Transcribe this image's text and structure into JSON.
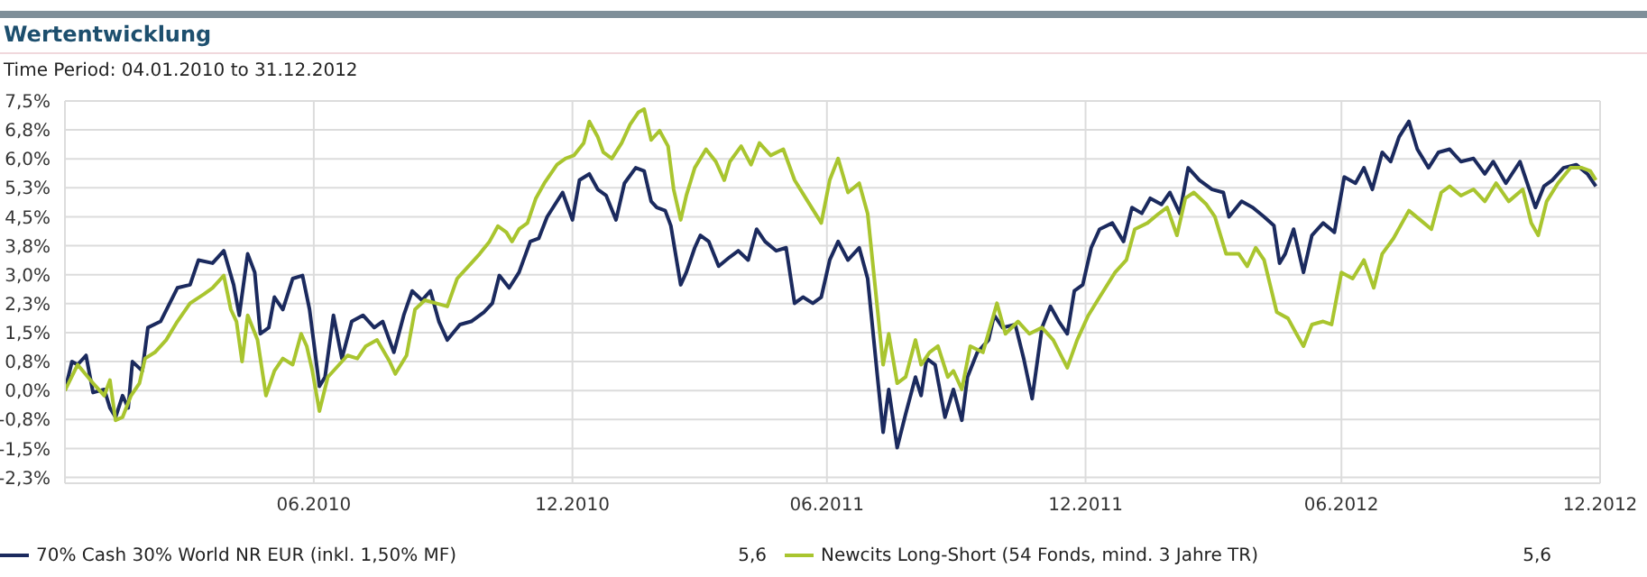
{
  "chart_data": {
    "type": "line",
    "title": "Wertentwicklung",
    "subtitle": "Time Period: 04.01.2010 to 31.12.2012",
    "xlim": [
      "2010-01-04",
      "2012-12-31"
    ],
    "xticks": [
      {
        "value": "2010-06-30",
        "label": "06.2010"
      },
      {
        "value": "2010-12-31",
        "label": "12.2010"
      },
      {
        "value": "2011-06-30",
        "label": "06.2011"
      },
      {
        "value": "2011-12-31",
        "label": "12.2011"
      },
      {
        "value": "2012-06-30",
        "label": "06.2012"
      },
      {
        "value": "2012-12-31",
        "label": "12.2012"
      }
    ],
    "ylim": [
      -2.4,
      7.5
    ],
    "yticks": [
      {
        "value": -2.25,
        "label": "-2,3%"
      },
      {
        "value": -1.5,
        "label": "-1,5%"
      },
      {
        "value": -0.75,
        "label": "-0,8%"
      },
      {
        "value": 0,
        "label": "0,0%"
      },
      {
        "value": 0.75,
        "label": "0,8%"
      },
      {
        "value": 1.5,
        "label": "1,5%"
      },
      {
        "value": 2.25,
        "label": "2,3%"
      },
      {
        "value": 3,
        "label": "3,0%"
      },
      {
        "value": 3.75,
        "label": "3,8%"
      },
      {
        "value": 4.5,
        "label": "4,5%"
      },
      {
        "value": 5.25,
        "label": "5,3%"
      },
      {
        "value": 6,
        "label": "6,0%"
      },
      {
        "value": 6.75,
        "label": "6,8%"
      },
      {
        "value": 7.5,
        "label": "7,5%"
      }
    ],
    "grid": true,
    "legend": "bottom",
    "annotations": [
      "5,6",
      "5,6"
    ],
    "series": [
      {
        "name": "70% Cash 30% World NR EUR (inkl. 1,50% MF)",
        "color": "#1b2a5e",
        "x": [
          "2010-01-04",
          "2010-01-09",
          "2010-01-13",
          "2010-01-19",
          "2010-01-24",
          "2010-02-01",
          "2010-02-05",
          "2010-02-09",
          "2010-02-14",
          "2010-02-18",
          "2010-02-21",
          "2010-02-28",
          "2010-03-04",
          "2010-03-13",
          "2010-03-25",
          "2010-04-03",
          "2010-04-09",
          "2010-04-19",
          "2010-04-27",
          "2010-05-04",
          "2010-05-08",
          "2010-05-14",
          "2010-05-19",
          "2010-05-23",
          "2010-05-29",
          "2010-06-02",
          "2010-06-08",
          "2010-06-15",
          "2010-06-22",
          "2010-06-27",
          "2010-07-04",
          "2010-07-08",
          "2010-07-14",
          "2010-07-20",
          "2010-07-27",
          "2010-08-04",
          "2010-08-12",
          "2010-08-18",
          "2010-08-26",
          "2010-09-02",
          "2010-09-08",
          "2010-09-15",
          "2010-09-21",
          "2010-09-27",
          "2010-10-03",
          "2010-10-12",
          "2010-10-20",
          "2010-10-29",
          "2010-11-04",
          "2010-11-09",
          "2010-11-16",
          "2010-11-23",
          "2010-12-01",
          "2010-12-07",
          "2010-12-13",
          "2010-12-24",
          "2010-12-31",
          "2011-01-05",
          "2011-01-12",
          "2011-01-18",
          "2011-01-24",
          "2011-01-31",
          "2011-02-06",
          "2011-02-14",
          "2011-02-20",
          "2011-02-25",
          "2011-03-01",
          "2011-03-07",
          "2011-03-11",
          "2011-03-18",
          "2011-03-22",
          "2011-03-28",
          "2011-04-01",
          "2011-04-07",
          "2011-04-14",
          "2011-04-22",
          "2011-04-28",
          "2011-05-05",
          "2011-05-11",
          "2011-05-17",
          "2011-05-25",
          "2011-06-01",
          "2011-06-07",
          "2011-06-13",
          "2011-06-20",
          "2011-06-26",
          "2011-07-02",
          "2011-07-08",
          "2011-07-15",
          "2011-07-23",
          "2011-07-29",
          "2011-08-05",
          "2011-08-09",
          "2011-08-13",
          "2011-08-19",
          "2011-08-25",
          "2011-09-01",
          "2011-09-05",
          "2011-09-09",
          "2011-09-15",
          "2011-09-22",
          "2011-09-28",
          "2011-10-04",
          "2011-10-08",
          "2011-10-15",
          "2011-10-23",
          "2011-10-27",
          "2011-11-02",
          "2011-11-11",
          "2011-11-17",
          "2011-11-23",
          "2011-11-30",
          "2011-12-06",
          "2011-12-12",
          "2011-12-18",
          "2011-12-23",
          "2011-12-29",
          "2012-01-04",
          "2012-01-10",
          "2012-01-19",
          "2012-01-27",
          "2012-02-02",
          "2012-02-09",
          "2012-02-15",
          "2012-02-23",
          "2012-02-29",
          "2012-03-07",
          "2012-03-13",
          "2012-03-21",
          "2012-03-30",
          "2012-04-07",
          "2012-04-11",
          "2012-04-20",
          "2012-04-28",
          "2012-05-06",
          "2012-05-13",
          "2012-05-17",
          "2012-05-21",
          "2012-05-27",
          "2012-06-03",
          "2012-06-09",
          "2012-06-17",
          "2012-06-25",
          "2012-07-02",
          "2012-07-10",
          "2012-07-16",
          "2012-07-22",
          "2012-07-29",
          "2012-08-04",
          "2012-08-10",
          "2012-08-17",
          "2012-08-23",
          "2012-08-31",
          "2012-09-07",
          "2012-09-15",
          "2012-09-23",
          "2012-10-02",
          "2012-10-10",
          "2012-10-16",
          "2012-10-25",
          "2012-11-04",
          "2012-11-15",
          "2012-11-21",
          "2012-11-27",
          "2012-12-05",
          "2012-12-14",
          "2012-12-22",
          "2012-12-28"
        ],
        "values": [
          0,
          0.75,
          0.67,
          0.91,
          -0.05,
          0.03,
          -0.45,
          -0.69,
          -0.13,
          -0.45,
          0.75,
          0.51,
          1.63,
          1.79,
          2.66,
          2.74,
          3.38,
          3.3,
          3.62,
          2.74,
          1.95,
          3.54,
          3.06,
          1.47,
          1.63,
          2.42,
          2.1,
          2.9,
          2.98,
          2.1,
          0.11,
          0.35,
          1.95,
          0.83,
          1.79,
          1.95,
          1.63,
          1.79,
          0.99,
          1.95,
          2.58,
          2.34,
          2.58,
          1.79,
          1.31,
          1.71,
          1.79,
          2.03,
          2.26,
          2.98,
          2.66,
          3.06,
          3.86,
          3.94,
          4.5,
          5.13,
          4.42,
          5.45,
          5.61,
          5.21,
          5.05,
          4.42,
          5.37,
          5.77,
          5.69,
          4.9,
          4.74,
          4.66,
          4.27,
          2.74,
          3.06,
          3.7,
          4.02,
          3.86,
          3.22,
          3.46,
          3.62,
          3.38,
          4.18,
          3.86,
          3.62,
          3.7,
          2.26,
          2.42,
          2.26,
          2.42,
          3.38,
          3.86,
          3.38,
          3.7,
          2.9,
          0.35,
          -1.08,
          0.03,
          -1.48,
          -0.61,
          0.35,
          -0.13,
          0.83,
          0.67,
          -0.69,
          0.03,
          -0.77,
          0.35,
          0.99,
          1.31,
          1.95,
          1.63,
          1.71,
          0.83,
          -0.21,
          1.63,
          2.18,
          1.79,
          1.47,
          2.58,
          2.74,
          3.7,
          4.18,
          4.34,
          3.86,
          4.74,
          4.59,
          4.98,
          4.82,
          5.13,
          4.59,
          5.77,
          5.45,
          5.21,
          5.13,
          4.5,
          4.9,
          4.74,
          4.5,
          4.27,
          3.3,
          3.54,
          4.18,
          3.06,
          4.02,
          4.34,
          4.1,
          5.53,
          5.37,
          5.77,
          5.21,
          6.17,
          5.93,
          6.57,
          6.97,
          6.25,
          5.77,
          6.17,
          6.25,
          5.93,
          6.01,
          5.61,
          5.93,
          5.37,
          5.93,
          4.74,
          5.29,
          5.45,
          5.77,
          5.85,
          5.61,
          5.29
        ]
      },
      {
        "name": "Newcits Long-Short (54 Fonds, mind. 3 Jahre TR)",
        "color": "#a9c52f",
        "x": [
          "2010-01-04",
          "2010-01-13",
          "2010-01-24",
          "2010-02-01",
          "2010-02-05",
          "2010-02-09",
          "2010-02-14",
          "2010-02-20",
          "2010-02-26",
          "2010-03-02",
          "2010-03-09",
          "2010-03-17",
          "2010-03-25",
          "2010-04-03",
          "2010-04-13",
          "2010-04-19",
          "2010-04-27",
          "2010-05-02",
          "2010-05-06",
          "2010-05-10",
          "2010-05-14",
          "2010-05-21",
          "2010-05-27",
          "2010-06-02",
          "2010-06-08",
          "2010-06-15",
          "2010-06-21",
          "2010-06-25",
          "2010-06-29",
          "2010-07-04",
          "2010-07-10",
          "2010-07-18",
          "2010-07-24",
          "2010-07-31",
          "2010-08-06",
          "2010-08-14",
          "2010-08-23",
          "2010-08-27",
          "2010-09-04",
          "2010-09-10",
          "2010-09-17",
          "2010-09-25",
          "2010-10-03",
          "2010-10-10",
          "2010-10-18",
          "2010-10-26",
          "2010-11-02",
          "2010-11-08",
          "2010-11-14",
          "2010-11-18",
          "2010-11-23",
          "2010-11-29",
          "2010-12-05",
          "2010-12-11",
          "2010-12-20",
          "2010-12-26",
          "2011-01-01",
          "2011-01-08",
          "2011-01-12",
          "2011-01-18",
          "2011-01-22",
          "2011-01-28",
          "2011-02-04",
          "2011-02-10",
          "2011-02-16",
          "2011-02-20",
          "2011-02-25",
          "2011-03-03",
          "2011-03-09",
          "2011-03-13",
          "2011-03-18",
          "2011-03-22",
          "2011-03-28",
          "2011-04-05",
          "2011-04-12",
          "2011-04-18",
          "2011-04-22",
          "2011-04-30",
          "2011-05-07",
          "2011-05-13",
          "2011-05-21",
          "2011-05-30",
          "2011-06-07",
          "2011-06-15",
          "2011-06-26",
          "2011-07-02",
          "2011-07-08",
          "2011-07-15",
          "2011-07-23",
          "2011-07-29",
          "2011-08-05",
          "2011-08-09",
          "2011-08-13",
          "2011-08-19",
          "2011-08-25",
          "2011-09-01",
          "2011-09-05",
          "2011-09-11",
          "2011-09-17",
          "2011-09-24",
          "2011-09-28",
          "2011-10-04",
          "2011-10-10",
          "2011-10-19",
          "2011-10-29",
          "2011-11-04",
          "2011-11-13",
          "2011-11-21",
          "2011-11-30",
          "2011-12-08",
          "2011-12-18",
          "2011-12-25",
          "2012-01-02",
          "2012-01-10",
          "2012-01-21",
          "2012-01-29",
          "2012-02-04",
          "2012-02-13",
          "2012-02-21",
          "2012-02-27",
          "2012-03-05",
          "2012-03-11",
          "2012-03-17",
          "2012-03-26",
          "2012-04-01",
          "2012-04-09",
          "2012-04-18",
          "2012-04-24",
          "2012-04-30",
          "2012-05-06",
          "2012-05-15",
          "2012-05-23",
          "2012-05-29",
          "2012-06-03",
          "2012-06-09",
          "2012-06-17",
          "2012-06-23",
          "2012-06-30",
          "2012-07-08",
          "2012-07-16",
          "2012-07-23",
          "2012-07-29",
          "2012-08-06",
          "2012-08-17",
          "2012-08-25",
          "2012-09-02",
          "2012-09-09",
          "2012-09-15",
          "2012-09-23",
          "2012-10-02",
          "2012-10-10",
          "2012-10-18",
          "2012-10-27",
          "2012-11-06",
          "2012-11-12",
          "2012-11-17",
          "2012-11-23",
          "2012-12-01",
          "2012-12-10",
          "2012-12-18",
          "2012-12-24",
          "2012-12-28"
        ],
        "values": [
          0,
          0.67,
          0.19,
          -0.13,
          0.27,
          -0.77,
          -0.69,
          -0.13,
          0.19,
          0.83,
          0.99,
          1.31,
          1.79,
          2.26,
          2.5,
          2.66,
          2.98,
          2.1,
          1.79,
          0.75,
          1.95,
          1.31,
          -0.13,
          0.51,
          0.83,
          0.67,
          1.47,
          1.15,
          0.51,
          -0.53,
          0.35,
          0.67,
          0.91,
          0.83,
          1.15,
          1.31,
          0.75,
          0.43,
          0.91,
          2.1,
          2.34,
          2.26,
          2.18,
          2.9,
          3.22,
          3.54,
          3.86,
          4.26,
          4.1,
          3.86,
          4.18,
          4.34,
          4.98,
          5.37,
          5.85,
          6.01,
          6.09,
          6.41,
          6.97,
          6.57,
          6.17,
          6.01,
          6.41,
          6.89,
          7.21,
          7.29,
          6.49,
          6.73,
          6.33,
          5.21,
          4.42,
          5.05,
          5.77,
          6.25,
          5.93,
          5.45,
          5.93,
          6.33,
          5.85,
          6.41,
          6.09,
          6.25,
          5.45,
          4.98,
          4.34,
          5.45,
          6.01,
          5.13,
          5.37,
          4.58,
          2.1,
          0.67,
          1.47,
          0.19,
          0.35,
          1.31,
          0.67,
          0.99,
          1.15,
          0.35,
          0.51,
          0.03,
          1.15,
          0.99,
          2.26,
          1.47,
          1.79,
          1.47,
          1.63,
          1.31,
          0.59,
          1.31,
          1.95,
          2.42,
          3.06,
          3.38,
          4.18,
          4.34,
          4.58,
          4.74,
          4.02,
          4.98,
          5.13,
          4.82,
          4.5,
          3.54,
          3.54,
          3.22,
          3.7,
          3.38,
          2.03,
          1.87,
          1.47,
          1.15,
          1.71,
          1.79,
          1.71,
          3.06,
          2.9,
          3.38,
          2.66,
          3.54,
          3.94,
          4.66,
          4.42,
          4.18,
          5.13,
          5.29,
          5.05,
          5.21,
          4.9,
          5.37,
          4.9,
          5.21,
          4.34,
          4.02,
          4.9,
          5.37,
          5.77,
          5.77,
          5.69,
          5.45
        ]
      }
    ]
  }
}
